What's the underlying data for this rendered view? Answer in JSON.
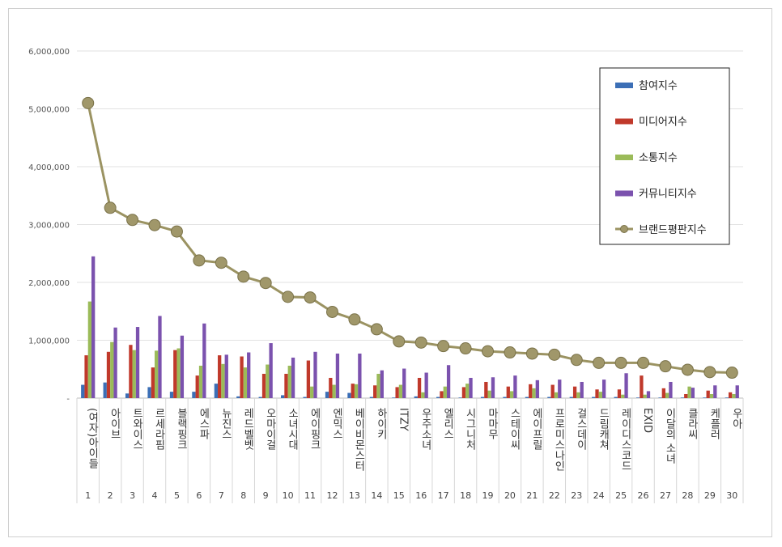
{
  "chart_data": {
    "type": "bar",
    "title": "",
    "xlabel": "",
    "ylabel": "",
    "ylim": [
      0,
      6000000
    ],
    "yticks": [
      0,
      1000000,
      2000000,
      3000000,
      4000000,
      5000000,
      6000000
    ],
    "ytick_labels": [
      "-",
      "1,000,000",
      "2,000,000",
      "3,000,000",
      "4,000,000",
      "5,000,000",
      "6,000,000"
    ],
    "grid": true,
    "legend_position": "top-right",
    "categories": [
      "(여자)아이들",
      "아이브",
      "트와이스",
      "르세라핌",
      "블랙핑크",
      "에스파",
      "뉴진스",
      "레드벨벳",
      "오마이걸",
      "소녀시대",
      "에이핑크",
      "엔믹스",
      "베이비몬스터",
      "하이키",
      "ITZY",
      "우주소녀",
      "엘리스",
      "시그니처",
      "마마무",
      "스테이씨",
      "에이프릴",
      "프로미스나인",
      "걸스데이",
      "드림캐쳐",
      "레이디스코드",
      "EXID",
      "이달의 소녀",
      "클라씨",
      "케플러",
      "우아"
    ],
    "ranks": [
      "1",
      "2",
      "3",
      "4",
      "5",
      "6",
      "7",
      "8",
      "9",
      "10",
      "11",
      "12",
      "13",
      "14",
      "15",
      "16",
      "17",
      "18",
      "19",
      "20",
      "21",
      "22",
      "23",
      "24",
      "25",
      "26",
      "27",
      "28",
      "29",
      "30"
    ],
    "series": [
      {
        "name": "참여지수",
        "kind": "bar",
        "color": "#3c6fb6",
        "values": [
          230000,
          270000,
          80000,
          190000,
          110000,
          110000,
          250000,
          30000,
          20000,
          50000,
          20000,
          110000,
          90000,
          20000,
          10000,
          30000,
          20000,
          10000,
          20000,
          20000,
          20000,
          20000,
          20000,
          20000,
          20000,
          10000,
          10000,
          10000,
          10000,
          10000
        ]
      },
      {
        "name": "미디어지수",
        "kind": "bar",
        "color": "#c0392b",
        "values": [
          740000,
          800000,
          920000,
          530000,
          830000,
          390000,
          740000,
          720000,
          420000,
          420000,
          650000,
          350000,
          250000,
          220000,
          190000,
          350000,
          120000,
          190000,
          280000,
          200000,
          240000,
          230000,
          200000,
          150000,
          150000,
          390000,
          170000,
          70000,
          130000,
          100000
        ]
      },
      {
        "name": "소통지수",
        "kind": "bar",
        "color": "#9bbb59",
        "values": [
          1670000,
          970000,
          830000,
          820000,
          860000,
          560000,
          590000,
          530000,
          580000,
          560000,
          200000,
          230000,
          240000,
          420000,
          230000,
          100000,
          200000,
          250000,
          130000,
          120000,
          170000,
          100000,
          100000,
          110000,
          60000,
          60000,
          90000,
          200000,
          70000,
          70000
        ]
      },
      {
        "name": "커뮤니티지수",
        "kind": "bar",
        "color": "#7b52ae",
        "values": [
          2450000,
          1220000,
          1230000,
          1420000,
          1080000,
          1290000,
          750000,
          790000,
          950000,
          700000,
          800000,
          770000,
          770000,
          480000,
          510000,
          440000,
          570000,
          350000,
          360000,
          390000,
          310000,
          320000,
          280000,
          320000,
          430000,
          120000,
          280000,
          180000,
          220000,
          220000
        ]
      },
      {
        "name": "브랜드평판지수",
        "kind": "line",
        "color": "#9b9362",
        "values": [
          5100000,
          3290000,
          3080000,
          2990000,
          2880000,
          2380000,
          2340000,
          2100000,
          1990000,
          1750000,
          1740000,
          1490000,
          1360000,
          1190000,
          980000,
          960000,
          900000,
          860000,
          810000,
          790000,
          770000,
          750000,
          660000,
          610000,
          610000,
          610000,
          550000,
          490000,
          450000,
          440000
        ]
      }
    ]
  }
}
